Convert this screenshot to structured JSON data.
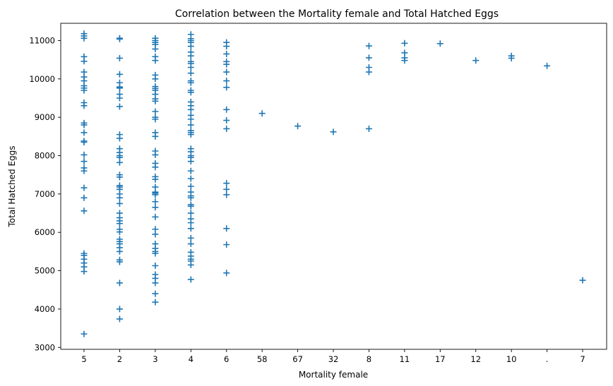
{
  "chart_data": {
    "type": "scatter",
    "title": "Correlation between the Mortality female and Total Hatched Eggs",
    "xlabel": "Mortality female",
    "ylabel": "Total Hatched Eggs",
    "x_type": "categorical",
    "categories": [
      "5",
      "2",
      "3",
      "4",
      "6",
      "58",
      "67",
      "32",
      "8",
      "11",
      "17",
      "12",
      "10",
      ".",
      "7"
    ],
    "ylim": [
      2950,
      11450
    ],
    "yticks": [
      3000,
      4000,
      5000,
      6000,
      7000,
      8000,
      9000,
      10000,
      11000
    ],
    "marker": "plus",
    "color": "#1f77b4",
    "grid": false,
    "series": [
      {
        "points": [
          [
            "5",
            11180
          ],
          [
            "5",
            11120
          ],
          [
            "5",
            11060
          ],
          [
            "5",
            10580
          ],
          [
            "5",
            10460
          ],
          [
            "5",
            10180
          ],
          [
            "5",
            10050
          ],
          [
            "5",
            9950
          ],
          [
            "5",
            9820
          ],
          [
            "5",
            9760
          ],
          [
            "5",
            9700
          ],
          [
            "5",
            9380
          ],
          [
            "5",
            9300
          ],
          [
            "5",
            8850
          ],
          [
            "5",
            8800
          ],
          [
            "5",
            8600
          ],
          [
            "5",
            8380
          ],
          [
            "5",
            8350
          ],
          [
            "5",
            8020
          ],
          [
            "5",
            7850
          ],
          [
            "5",
            7680
          ],
          [
            "5",
            7600
          ],
          [
            "5",
            7160
          ],
          [
            "5",
            6900
          ],
          [
            "5",
            6560
          ],
          [
            "5",
            5450
          ],
          [
            "5",
            5400
          ],
          [
            "5",
            5300
          ],
          [
            "5",
            5200
          ],
          [
            "5",
            5100
          ],
          [
            "5",
            4980
          ],
          [
            "5",
            3350
          ],
          [
            "2",
            11060
          ],
          [
            "2",
            11040
          ],
          [
            "2",
            10540
          ],
          [
            "2",
            10120
          ],
          [
            "2",
            9900
          ],
          [
            "2",
            9790
          ],
          [
            "2",
            9760
          ],
          [
            "2",
            9600
          ],
          [
            "2",
            9500
          ],
          [
            "2",
            9280
          ],
          [
            "2",
            8550
          ],
          [
            "2",
            8450
          ],
          [
            "2",
            8180
          ],
          [
            "2",
            8080
          ],
          [
            "2",
            8000
          ],
          [
            "2",
            7950
          ],
          [
            "2",
            7820
          ],
          [
            "2",
            7500
          ],
          [
            "2",
            7440
          ],
          [
            "2",
            7220
          ],
          [
            "2",
            7180
          ],
          [
            "2",
            7120
          ],
          [
            "2",
            7000
          ],
          [
            "2",
            6900
          ],
          [
            "2",
            6750
          ],
          [
            "2",
            6500
          ],
          [
            "2",
            6380
          ],
          [
            "2",
            6300
          ],
          [
            "2",
            6230
          ],
          [
            "2",
            6080
          ],
          [
            "2",
            6010
          ],
          [
            "2",
            5820
          ],
          [
            "2",
            5760
          ],
          [
            "2",
            5700
          ],
          [
            "2",
            5600
          ],
          [
            "2",
            5500
          ],
          [
            "2",
            5280
          ],
          [
            "2",
            5230
          ],
          [
            "2",
            4680
          ],
          [
            "2",
            4000
          ],
          [
            "2",
            3740
          ],
          [
            "3",
            11060
          ],
          [
            "3",
            11000
          ],
          [
            "3",
            10950
          ],
          [
            "3",
            10900
          ],
          [
            "3",
            10780
          ],
          [
            "3",
            10580
          ],
          [
            "3",
            10480
          ],
          [
            "3",
            10100
          ],
          [
            "3",
            10000
          ],
          [
            "3",
            9800
          ],
          [
            "3",
            9750
          ],
          [
            "3",
            9700
          ],
          [
            "3",
            9600
          ],
          [
            "3",
            9480
          ],
          [
            "3",
            9420
          ],
          [
            "3",
            9150
          ],
          [
            "3",
            9000
          ],
          [
            "3",
            8950
          ],
          [
            "3",
            8600
          ],
          [
            "3",
            8500
          ],
          [
            "3",
            8120
          ],
          [
            "3",
            8020
          ],
          [
            "3",
            7800
          ],
          [
            "3",
            7700
          ],
          [
            "3",
            7450
          ],
          [
            "3",
            7380
          ],
          [
            "3",
            7180
          ],
          [
            "3",
            7050
          ],
          [
            "3",
            7020
          ],
          [
            "3",
            6980
          ],
          [
            "3",
            6800
          ],
          [
            "3",
            6650
          ],
          [
            "3",
            6400
          ],
          [
            "3",
            6080
          ],
          [
            "3",
            5950
          ],
          [
            "3",
            5700
          ],
          [
            "3",
            5580
          ],
          [
            "3",
            5500
          ],
          [
            "3",
            5450
          ],
          [
            "3",
            5130
          ],
          [
            "3",
            4900
          ],
          [
            "3",
            4800
          ],
          [
            "3",
            4680
          ],
          [
            "3",
            4400
          ],
          [
            "3",
            4180
          ],
          [
            "4",
            11160
          ],
          [
            "4",
            11050
          ],
          [
            "4",
            11000
          ],
          [
            "4",
            10950
          ],
          [
            "4",
            10850
          ],
          [
            "4",
            10700
          ],
          [
            "4",
            10600
          ],
          [
            "4",
            10450
          ],
          [
            "4",
            10400
          ],
          [
            "4",
            10300
          ],
          [
            "4",
            10150
          ],
          [
            "4",
            9950
          ],
          [
            "4",
            9900
          ],
          [
            "4",
            9700
          ],
          [
            "4",
            9650
          ],
          [
            "4",
            9400
          ],
          [
            "4",
            9300
          ],
          [
            "4",
            9200
          ],
          [
            "4",
            9050
          ],
          [
            "4",
            8950
          ],
          [
            "4",
            8800
          ],
          [
            "4",
            8650
          ],
          [
            "4",
            8600
          ],
          [
            "4",
            8550
          ],
          [
            "4",
            8180
          ],
          [
            "4",
            8100
          ],
          [
            "4",
            8000
          ],
          [
            "4",
            7950
          ],
          [
            "4",
            7850
          ],
          [
            "4",
            7600
          ],
          [
            "4",
            7400
          ],
          [
            "4",
            7200
          ],
          [
            "4",
            7050
          ],
          [
            "4",
            6950
          ],
          [
            "4",
            6900
          ],
          [
            "4",
            6720
          ],
          [
            "4",
            6680
          ],
          [
            "4",
            6500
          ],
          [
            "4",
            6350
          ],
          [
            "4",
            6250
          ],
          [
            "4",
            6100
          ],
          [
            "4",
            5850
          ],
          [
            "4",
            5700
          ],
          [
            "4",
            5480
          ],
          [
            "4",
            5380
          ],
          [
            "4",
            5300
          ],
          [
            "4",
            5250
          ],
          [
            "4",
            5150
          ],
          [
            "4",
            4770
          ],
          [
            "6",
            10950
          ],
          [
            "6",
            10850
          ],
          [
            "6",
            10650
          ],
          [
            "6",
            10450
          ],
          [
            "6",
            10380
          ],
          [
            "6",
            10180
          ],
          [
            "6",
            9950
          ],
          [
            "6",
            9780
          ],
          [
            "6",
            9200
          ],
          [
            "6",
            8920
          ],
          [
            "6",
            8700
          ],
          [
            "6",
            7280
          ],
          [
            "6",
            7120
          ],
          [
            "6",
            6980
          ],
          [
            "6",
            6100
          ],
          [
            "6",
            5680
          ],
          [
            "6",
            4940
          ],
          [
            "58",
            9100
          ],
          [
            "67",
            8770
          ],
          [
            "32",
            8620
          ],
          [
            "8",
            10860
          ],
          [
            "8",
            10550
          ],
          [
            "8",
            10300
          ],
          [
            "8",
            10180
          ],
          [
            "8",
            8700
          ],
          [
            "11",
            10930
          ],
          [
            "11",
            10680
          ],
          [
            "11",
            10550
          ],
          [
            "11",
            10480
          ],
          [
            "17",
            10920
          ],
          [
            "12",
            10480
          ],
          [
            "10",
            10600
          ],
          [
            "10",
            10540
          ],
          [
            ".",
            10340
          ],
          [
            "7",
            4750
          ]
        ]
      }
    ]
  }
}
